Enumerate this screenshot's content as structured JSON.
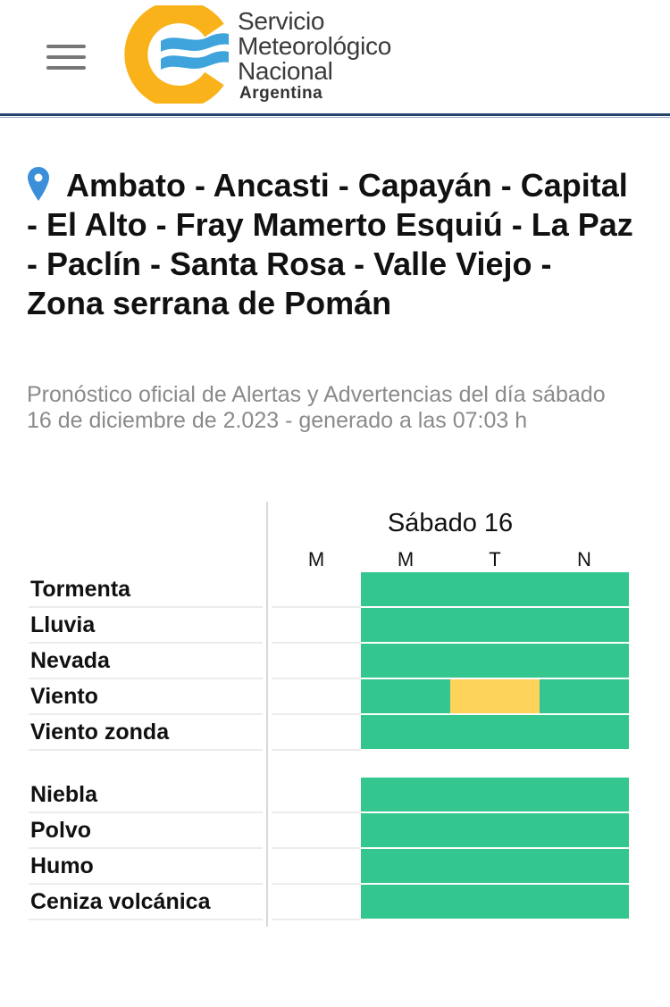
{
  "header": {
    "logo": {
      "line1": "Servicio",
      "line2": "Meteorológico",
      "line3": "Nacional",
      "country": "Argentina",
      "ring_color": "#f9b21a",
      "wave_color": "#3fa3dc"
    },
    "menu_icon": "hamburger-icon"
  },
  "location": {
    "icon": "map-pin-icon",
    "title": "Ambato - Ancasti - Capayán - Capital - El Alto - Fray Mamerto Esquiú - La Paz - Paclín - Santa Rosa - Valle Viejo - Zona serrana de Pomán"
  },
  "subtitle": "Pronóstico oficial de Alertas y Advertencias del día sábado 16 de diciembre de 2.023 - generado a las 07:03 h",
  "forecast": {
    "day": "Sábado 16",
    "periods": [
      "M",
      "M",
      "T",
      "N"
    ],
    "colors": {
      "green": "#34c68f",
      "yellow": "#fdd35b"
    },
    "group1": [
      {
        "label": "Tormenta",
        "levels": [
          "none",
          "green",
          "green",
          "green"
        ]
      },
      {
        "label": "Lluvia",
        "levels": [
          "none",
          "green",
          "green",
          "green"
        ]
      },
      {
        "label": "Nevada",
        "levels": [
          "none",
          "green",
          "green",
          "green"
        ]
      },
      {
        "label": "Viento",
        "levels": [
          "none",
          "green",
          "yellow",
          "green"
        ]
      },
      {
        "label": "Viento zonda",
        "levels": [
          "none",
          "green",
          "green",
          "green"
        ]
      }
    ],
    "group2": [
      {
        "label": "Niebla",
        "levels": [
          "none",
          "green",
          "green",
          "green"
        ]
      },
      {
        "label": "Polvo",
        "levels": [
          "none",
          "green",
          "green",
          "green"
        ]
      },
      {
        "label": "Humo",
        "levels": [
          "none",
          "green",
          "green",
          "green"
        ]
      },
      {
        "label": "Ceniza volcánica",
        "levels": [
          "none",
          "green",
          "green",
          "green"
        ]
      }
    ]
  }
}
